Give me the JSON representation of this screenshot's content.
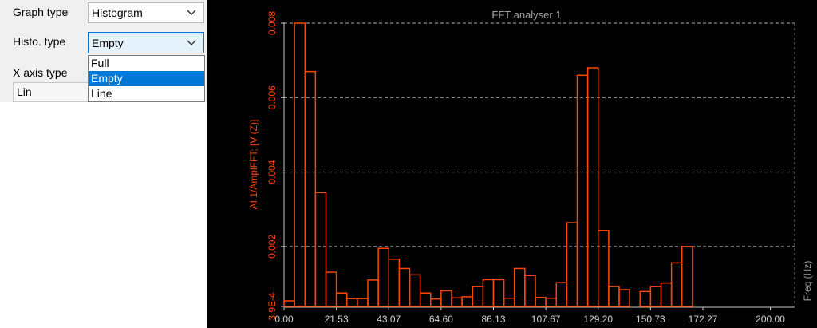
{
  "settings": {
    "graph_type_label": "Graph type",
    "graph_type_value": "Histogram",
    "histo_type_label": "Histo. type",
    "histo_type_value": "Empty",
    "x_axis_label": "X axis type",
    "x_axis_value": "Lin",
    "histo_options": [
      "Full",
      "Empty",
      "Line"
    ],
    "histo_selected_index": 1
  },
  "colors": {
    "accent": "#ff4500",
    "selection": "#0078d7",
    "axis_line": "#c8c8c8"
  },
  "chart_data": {
    "type": "bar",
    "style": "histogram-outline",
    "title": "FFT analyser 1",
    "ylabel": "AI 1/AmplFFT; [V (Z)]",
    "xlabel": "Freq (Hz)",
    "xlim": [
      0,
      210
    ],
    "ylim": [
      0.00039,
      0.008
    ],
    "yticks": [
      0.00039,
      0.002,
      0.004,
      0.006,
      0.008
    ],
    "ytick_labels": [
      "3.9E-4",
      "0.002",
      "0.004",
      "0.006",
      "0.008"
    ],
    "xticks": [
      0.0,
      21.53,
      43.07,
      64.6,
      86.13,
      107.67,
      129.2,
      150.73,
      172.27,
      200.0
    ],
    "xtick_labels": [
      "0.00",
      "21.53",
      "43.07",
      "64.60",
      "86.13",
      "107.67",
      "129.20",
      "150.73",
      "172.27",
      "200.00"
    ],
    "grid": "dashed-horizontal",
    "bin_width": 4.3066,
    "values": [
      0.00054,
      0.008,
      0.0067,
      0.00345,
      0.00131,
      0.00075,
      0.0006,
      0.0006,
      0.0011,
      0.00195,
      0.00166,
      0.00141,
      0.00124,
      0.00075,
      0.00059,
      0.00081,
      0.00062,
      0.00065,
      0.00093,
      0.00111,
      0.00111,
      0.00061,
      0.00141,
      0.00122,
      0.00063,
      0.00061,
      0.00103,
      0.00264,
      0.0066,
      0.0068,
      0.00243,
      0.00093,
      0.00084,
      0.00039,
      0.00079,
      0.00093,
      0.00102,
      0.00156,
      0.002
    ]
  }
}
